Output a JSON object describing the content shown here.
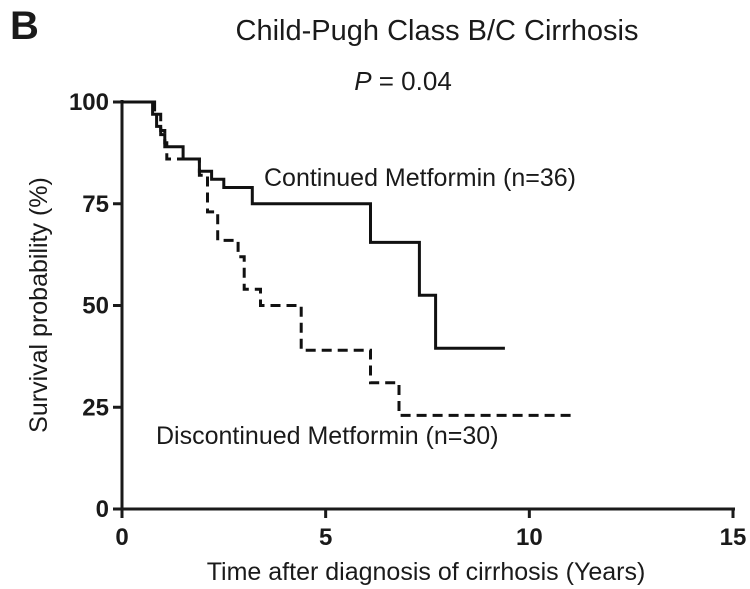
{
  "panel_label": "B",
  "p_value": {
    "symbol": "P",
    "rest": " = 0.04"
  },
  "chart_data": {
    "type": "line",
    "step": true,
    "title": "Child-Pugh Class B/C Cirrhosis",
    "xlabel": "Time after diagnosis of cirrhosis (Years)",
    "ylabel": "Survival probability (%)",
    "xlim": [
      0,
      15
    ],
    "ylim": [
      0,
      100
    ],
    "xticks": [
      0,
      5,
      10,
      15
    ],
    "yticks": [
      0,
      25,
      50,
      75,
      100
    ],
    "series": [
      {
        "name": "Continued Metformin (n=36)",
        "style": "solid",
        "color": "#111111",
        "points": [
          [
            0,
            100
          ],
          [
            0.75,
            100
          ],
          [
            0.75,
            97
          ],
          [
            0.85,
            97
          ],
          [
            0.85,
            94
          ],
          [
            0.95,
            94
          ],
          [
            0.95,
            92
          ],
          [
            1.05,
            92
          ],
          [
            1.05,
            89
          ],
          [
            1.5,
            89
          ],
          [
            1.5,
            86
          ],
          [
            1.9,
            86
          ],
          [
            1.9,
            83
          ],
          [
            2.2,
            83
          ],
          [
            2.2,
            81
          ],
          [
            2.5,
            81
          ],
          [
            2.5,
            79
          ],
          [
            3.2,
            79
          ],
          [
            3.2,
            75
          ],
          [
            6.1,
            75
          ],
          [
            6.1,
            65.5
          ],
          [
            7.3,
            65.5
          ],
          [
            7.3,
            52.5
          ],
          [
            7.7,
            52.5
          ],
          [
            7.7,
            39.5
          ],
          [
            9.4,
            39.5
          ]
        ]
      },
      {
        "name": "Discontinued Metformin (n=30)",
        "style": "dashed",
        "color": "#111111",
        "points": [
          [
            0,
            100
          ],
          [
            0.8,
            100
          ],
          [
            0.8,
            97
          ],
          [
            0.95,
            97
          ],
          [
            0.95,
            93
          ],
          [
            1.05,
            93
          ],
          [
            1.05,
            90
          ],
          [
            1.1,
            90
          ],
          [
            1.1,
            86
          ],
          [
            1.9,
            86
          ],
          [
            1.9,
            82
          ],
          [
            2.1,
            82
          ],
          [
            2.1,
            73
          ],
          [
            2.35,
            73
          ],
          [
            2.35,
            66
          ],
          [
            2.85,
            66
          ],
          [
            2.85,
            62
          ],
          [
            3.0,
            62
          ],
          [
            3.0,
            54
          ],
          [
            3.4,
            54
          ],
          [
            3.4,
            50
          ],
          [
            4.4,
            50
          ],
          [
            4.4,
            39
          ],
          [
            6.1,
            39
          ],
          [
            6.1,
            31
          ],
          [
            6.8,
            31
          ],
          [
            6.8,
            23
          ],
          [
            11.1,
            23
          ]
        ]
      }
    ]
  }
}
